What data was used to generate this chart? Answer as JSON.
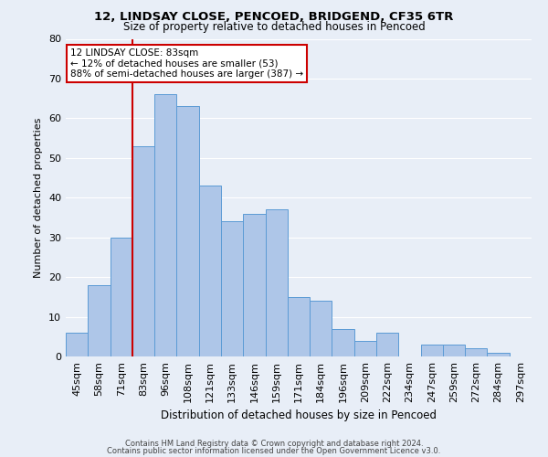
{
  "title1": "12, LINDSAY CLOSE, PENCOED, BRIDGEND, CF35 6TR",
  "title2": "Size of property relative to detached houses in Pencoed",
  "xlabel": "Distribution of detached houses by size in Pencoed",
  "ylabel": "Number of detached properties",
  "categories": [
    "45sqm",
    "58sqm",
    "71sqm",
    "83sqm",
    "96sqm",
    "108sqm",
    "121sqm",
    "133sqm",
    "146sqm",
    "159sqm",
    "171sqm",
    "184sqm",
    "196sqm",
    "209sqm",
    "222sqm",
    "234sqm",
    "247sqm",
    "259sqm",
    "272sqm",
    "284sqm",
    "297sqm"
  ],
  "values": [
    6,
    18,
    30,
    53,
    66,
    63,
    43,
    34,
    36,
    37,
    15,
    14,
    7,
    4,
    6,
    0,
    3,
    3,
    2,
    1,
    0
  ],
  "bar_color": "#aec6e8",
  "bar_edge_color": "#5b9bd5",
  "vline_index": 3,
  "vline_color": "#cc0000",
  "ylim": [
    0,
    80
  ],
  "yticks": [
    0,
    10,
    20,
    30,
    40,
    50,
    60,
    70,
    80
  ],
  "annotation_text": "12 LINDSAY CLOSE: 83sqm\n← 12% of detached houses are smaller (53)\n88% of semi-detached houses are larger (387) →",
  "annotation_box_facecolor": "#ffffff",
  "annotation_box_edgecolor": "#cc0000",
  "footer1": "Contains HM Land Registry data © Crown copyright and database right 2024.",
  "footer2": "Contains public sector information licensed under the Open Government Licence v3.0.",
  "background_color": "#e8eef7",
  "grid_color": "#ffffff",
  "fig_width": 6.0,
  "fig_height": 5.0,
  "dpi": 100
}
